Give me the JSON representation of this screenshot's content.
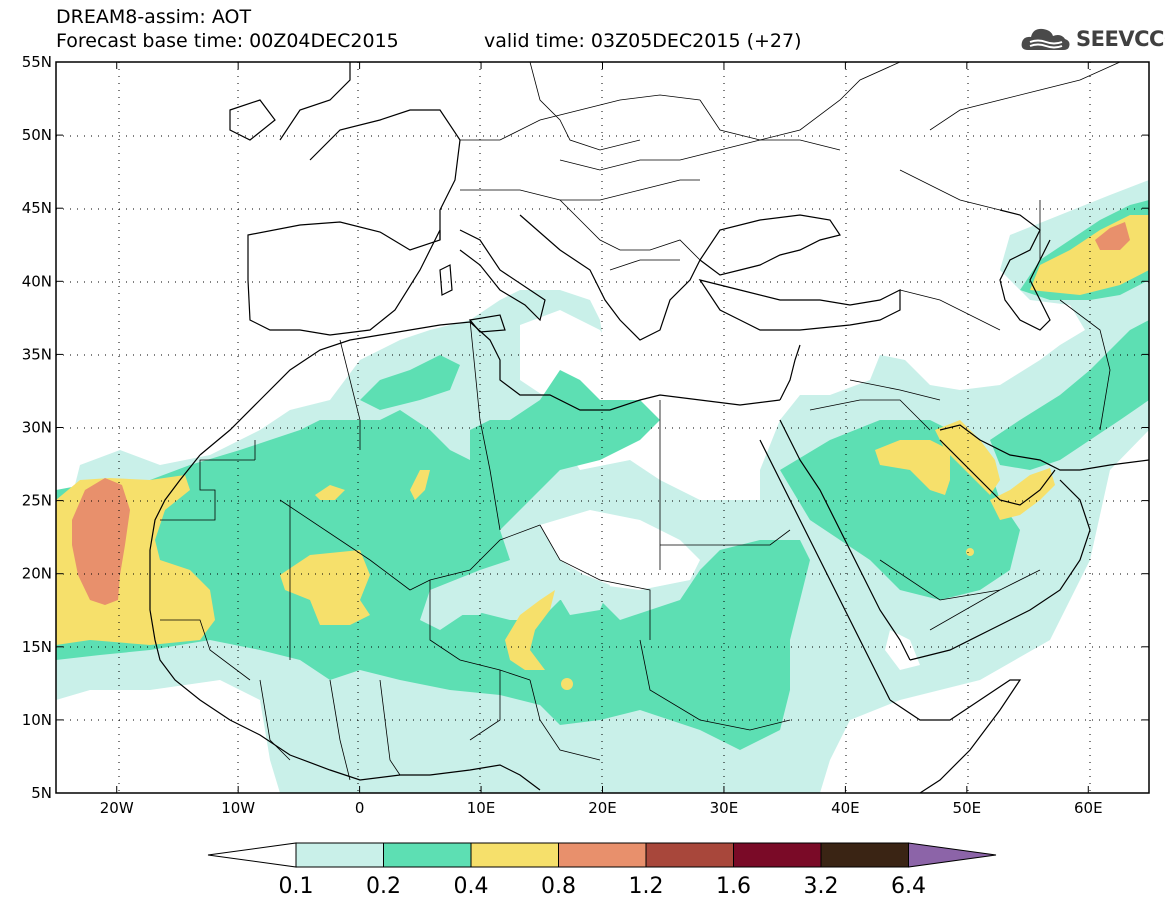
{
  "header": {
    "title": "DREAM8-assim: AOT",
    "base_time": "Forecast base time: 00Z04DEC2015",
    "valid_time": "valid time: 03Z05DEC2015 (+27)"
  },
  "logo": {
    "text": "SEEVCCC",
    "icon": "cloud-icon"
  },
  "axes": {
    "lon_labels": [
      "20W",
      "10W",
      "0",
      "10E",
      "20E",
      "30E",
      "40E",
      "50E",
      "60E"
    ],
    "lon_values": [
      -20,
      -10,
      0,
      10,
      20,
      30,
      40,
      50,
      60
    ],
    "lat_labels": [
      "55N",
      "50N",
      "45N",
      "40N",
      "35N",
      "30N",
      "25N",
      "20N",
      "15N",
      "10N",
      "5N"
    ],
    "lat_values": [
      55,
      50,
      45,
      40,
      35,
      30,
      25,
      20,
      15,
      10,
      5
    ],
    "lon_range": [
      -25,
      65
    ],
    "lat_range": [
      5,
      55
    ],
    "grid": "dotted"
  },
  "colorbar": {
    "labels": [
      "0.1",
      "0.2",
      "0.4",
      "0.8",
      "1.2",
      "1.6",
      "3.2",
      "6.4"
    ],
    "colors": [
      "#ffffff",
      "#c9f0e9",
      "#5ddfb3",
      "#f6e06b",
      "#e8906c",
      "#a8473b",
      "#7a0a27",
      "#3a2414",
      "#8c64a8"
    ]
  },
  "chart_data": {
    "type": "heatmap",
    "variable": "AOT",
    "levels": [
      0.1,
      0.2,
      0.4,
      0.8,
      1.2,
      1.6,
      3.2,
      6.4
    ],
    "lon_range": [
      -25,
      65
    ],
    "lat_range": [
      5,
      55
    ]
  }
}
